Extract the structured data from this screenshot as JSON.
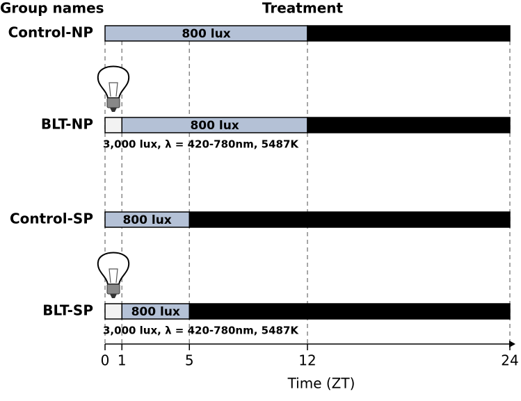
{
  "header": {
    "group_names": "Group names",
    "treatment": "Treatment"
  },
  "axis": {
    "label": "Time (ZT)",
    "xlim": [
      0,
      24
    ],
    "xticks": [
      0,
      1,
      5,
      12,
      24
    ]
  },
  "groups": [
    {
      "name": "Control-NP",
      "segments": [
        {
          "start": 0,
          "end": 12,
          "color": "#b4c1d6",
          "label": "800 lux"
        },
        {
          "start": 12,
          "end": 24,
          "color": "#000000"
        }
      ]
    },
    {
      "name": "BLT-NP",
      "bulb": true,
      "note": "3,000 lux, λ = 420-780nm, 5487K",
      "segments": [
        {
          "start": 0,
          "end": 1,
          "color": "#f2f2f2"
        },
        {
          "start": 1,
          "end": 12,
          "color": "#b4c1d6",
          "label": "800 lux"
        },
        {
          "start": 12,
          "end": 24,
          "color": "#000000"
        }
      ]
    },
    {
      "name": "Control-SP",
      "segments": [
        {
          "start": 0,
          "end": 5,
          "color": "#b4c1d6",
          "label": "800 lux"
        },
        {
          "start": 5,
          "end": 24,
          "color": "#000000"
        }
      ]
    },
    {
      "name": "BLT-SP",
      "bulb": true,
      "note": "3,000 lux, λ = 420-780nm, 5487K",
      "segments": [
        {
          "start": 0,
          "end": 1,
          "color": "#f2f2f2"
        },
        {
          "start": 1,
          "end": 5,
          "color": "#b4c1d6",
          "label": "800 lux"
        },
        {
          "start": 5,
          "end": 24,
          "color": "#000000"
        }
      ]
    }
  ]
}
